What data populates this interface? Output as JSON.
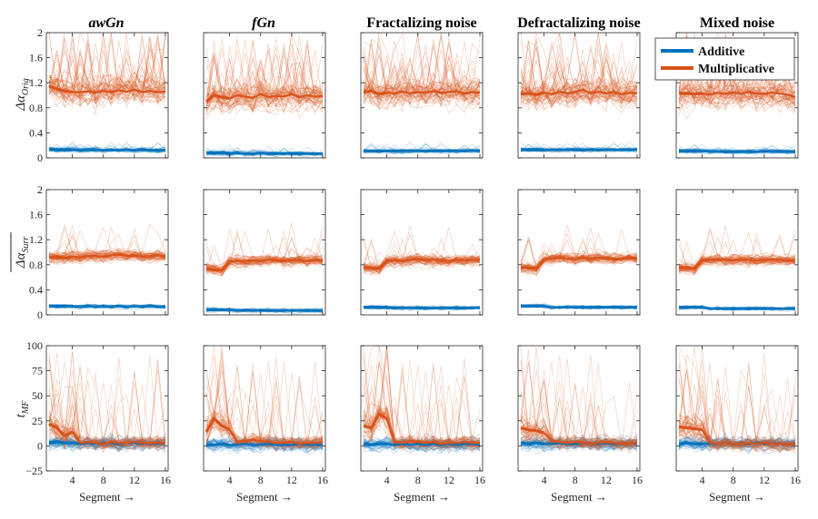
{
  "colors": {
    "additive": "#0072BD",
    "multiplicative": "#D95319"
  },
  "column_titles": [
    "awGn",
    "fGn",
    "Fractalizing noise",
    "Defractalizing noise",
    "Mixed noise"
  ],
  "legend": {
    "additive": "Additive",
    "multiplicative": "Multiplicative"
  },
  "xlabel": "Segment",
  "xlabel_arrow": "→",
  "row_ylabels": [
    {
      "main": "Δα",
      "sub": "Orig",
      "over": false
    },
    {
      "main": "Δα",
      "sub": "Surr",
      "over": true
    },
    {
      "main": "t",
      "sub": "MF",
      "over": false
    }
  ],
  "chart_data": {
    "type": "line",
    "x": [
      1,
      2,
      3,
      4,
      5,
      6,
      7,
      8,
      9,
      10,
      11,
      12,
      13,
      14,
      15,
      16
    ],
    "xticks": [
      4,
      8,
      12,
      16
    ],
    "rows": [
      {
        "ylim": [
          0,
          2
        ],
        "yticks": [
          "0",
          "0.4",
          "0.8",
          "1.2",
          "1.6",
          "2"
        ],
        "yvalues": [
          0,
          0.4,
          0.8,
          1.2,
          1.6,
          2
        ],
        "mean_additive": [
          [
            0.14,
            0.13,
            0.13,
            0.13,
            0.12,
            0.13,
            0.13,
            0.12,
            0.13,
            0.12,
            0.13,
            0.12,
            0.13,
            0.12,
            0.12,
            0.13
          ],
          [
            0.08,
            0.08,
            0.08,
            0.07,
            0.08,
            0.07,
            0.07,
            0.08,
            0.07,
            0.07,
            0.07,
            0.07,
            0.07,
            0.07,
            0.07,
            0.07
          ],
          [
            0.11,
            0.11,
            0.11,
            0.11,
            0.11,
            0.11,
            0.11,
            0.11,
            0.11,
            0.11,
            0.11,
            0.11,
            0.11,
            0.11,
            0.11,
            0.11
          ],
          [
            0.13,
            0.13,
            0.13,
            0.13,
            0.13,
            0.13,
            0.13,
            0.13,
            0.13,
            0.13,
            0.13,
            0.13,
            0.13,
            0.13,
            0.13,
            0.13
          ],
          [
            0.11,
            0.11,
            0.11,
            0.11,
            0.1,
            0.1,
            0.1,
            0.1,
            0.1,
            0.1,
            0.1,
            0.1,
            0.1,
            0.1,
            0.1,
            0.1
          ]
        ],
        "mean_multiplicative": [
          [
            1.15,
            1.1,
            1.07,
            1.05,
            1.05,
            1.06,
            1.04,
            1.07,
            1.05,
            1.08,
            1.06,
            1.09,
            1.05,
            1.07,
            1.05,
            1.06
          ],
          [
            0.9,
            1.0,
            0.97,
            0.95,
            1.0,
            0.98,
            0.96,
            1.02,
            0.97,
            0.99,
            0.98,
            1.02,
            0.97,
            1.0,
            0.98,
            0.99
          ],
          [
            1.05,
            1.07,
            1.02,
            1.04,
            1.03,
            1.06,
            1.03,
            1.05,
            1.04,
            1.07,
            1.04,
            1.05,
            1.06,
            1.03,
            1.05,
            1.04
          ],
          [
            1.02,
            1.03,
            1.01,
            1.04,
            1.02,
            1.06,
            1.03,
            1.05,
            1.09,
            1.03,
            1.06,
            1.03,
            1.05,
            1.02,
            1.04,
            1.03
          ],
          [
            1.03,
            1.03,
            1.02,
            1.03,
            1.01,
            1.04,
            1.02,
            1.04,
            1.03,
            1.05,
            1.03,
            1.02,
            1.04,
            1.03,
            1.01,
            0.97
          ]
        ]
      },
      {
        "ylim": [
          0,
          2
        ],
        "yticks": [
          "0",
          "0.4",
          "0.8",
          "1.2",
          "1.6",
          "2"
        ],
        "yvalues": [
          0,
          0.4,
          0.8,
          1.2,
          1.6,
          2
        ],
        "mean_additive": [
          [
            0.14,
            0.14,
            0.14,
            0.14,
            0.13,
            0.14,
            0.13,
            0.14,
            0.13,
            0.14,
            0.13,
            0.14,
            0.13,
            0.14,
            0.13,
            0.13
          ],
          [
            0.08,
            0.08,
            0.08,
            0.08,
            0.07,
            0.07,
            0.07,
            0.07,
            0.07,
            0.07,
            0.07,
            0.07,
            0.07,
            0.07,
            0.07,
            0.07
          ],
          [
            0.12,
            0.12,
            0.12,
            0.12,
            0.11,
            0.11,
            0.11,
            0.11,
            0.11,
            0.11,
            0.11,
            0.11,
            0.11,
            0.11,
            0.11,
            0.11
          ],
          [
            0.14,
            0.14,
            0.14,
            0.14,
            0.12,
            0.12,
            0.12,
            0.12,
            0.12,
            0.12,
            0.12,
            0.12,
            0.12,
            0.12,
            0.12,
            0.12
          ],
          [
            0.12,
            0.12,
            0.12,
            0.12,
            0.1,
            0.1,
            0.1,
            0.1,
            0.1,
            0.1,
            0.1,
            0.1,
            0.1,
            0.1,
            0.1,
            0.1
          ]
        ],
        "mean_multiplicative": [
          [
            0.92,
            0.92,
            0.91,
            0.93,
            0.92,
            0.94,
            0.94,
            0.93,
            0.95,
            0.96,
            0.94,
            0.95,
            0.93,
            0.94,
            0.95,
            0.94
          ],
          [
            0.74,
            0.72,
            0.71,
            0.85,
            0.86,
            0.85,
            0.87,
            0.86,
            0.88,
            0.87,
            0.86,
            0.87,
            0.88,
            0.86,
            0.88,
            0.87
          ],
          [
            0.76,
            0.75,
            0.74,
            0.86,
            0.87,
            0.86,
            0.88,
            0.89,
            0.87,
            0.88,
            0.87,
            0.86,
            0.88,
            0.87,
            0.88,
            0.88
          ],
          [
            0.76,
            0.75,
            0.74,
            0.89,
            0.9,
            0.91,
            0.9,
            0.89,
            0.91,
            0.9,
            0.91,
            0.9,
            0.89,
            0.9,
            0.91,
            0.9
          ],
          [
            0.76,
            0.75,
            0.74,
            0.88,
            0.88,
            0.89,
            0.88,
            0.87,
            0.89,
            0.88,
            0.87,
            0.88,
            0.89,
            0.88,
            0.87,
            0.88
          ]
        ]
      },
      {
        "ylim": [
          -25,
          100
        ],
        "yticks": [
          "−25",
          "0",
          "25",
          "50",
          "75",
          "100"
        ],
        "yvalues": [
          -25,
          0,
          25,
          50,
          75,
          100
        ],
        "mean_additive": [
          [
            3,
            4,
            3,
            3,
            2,
            3,
            2,
            3,
            3,
            2,
            3,
            3,
            2,
            3,
            2,
            3
          ],
          [
            1,
            1,
            2,
            1,
            1,
            2,
            1,
            1,
            2,
            1,
            1,
            1,
            2,
            1,
            1,
            1
          ],
          [
            2,
            1,
            2,
            2,
            1,
            2,
            1,
            2,
            1,
            2,
            1,
            2,
            1,
            2,
            2,
            1
          ],
          [
            3,
            2,
            3,
            2,
            2,
            3,
            2,
            2,
            3,
            2,
            2,
            3,
            2,
            2,
            2,
            2
          ],
          [
            2,
            3,
            2,
            2,
            2,
            2,
            3,
            2,
            2,
            2,
            3,
            2,
            2,
            2,
            2,
            2
          ]
        ],
        "mean_multiplicative": [
          [
            22,
            18,
            10,
            14,
            3,
            4,
            3,
            2,
            4,
            3,
            3,
            4,
            3,
            3,
            3,
            3
          ],
          [
            14,
            27,
            20,
            16,
            4,
            5,
            6,
            5,
            4,
            3,
            3,
            4,
            2,
            3,
            3,
            4
          ],
          [
            20,
            18,
            32,
            27,
            4,
            3,
            5,
            4,
            3,
            4,
            2,
            3,
            3,
            4,
            3,
            3
          ],
          [
            18,
            16,
            15,
            13,
            5,
            4,
            3,
            4,
            3,
            2,
            3,
            4,
            3,
            2,
            2,
            3
          ],
          [
            19,
            18,
            17,
            16,
            3,
            2,
            3,
            2,
            2,
            3,
            2,
            3,
            2,
            2,
            2,
            2
          ]
        ]
      }
    ]
  }
}
